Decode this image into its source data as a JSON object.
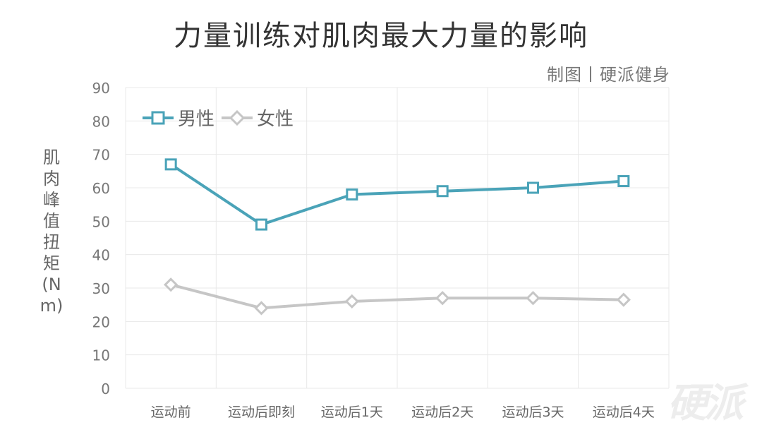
{
  "title": "力量训练对肌肉最大力量的影响",
  "credit": "制图丨硬派健身",
  "watermark": "硬派",
  "colors": {
    "male": "#4aa3b8",
    "female": "#c6c6c6",
    "grid": "#e8e8e8",
    "axis_text": "#777777"
  },
  "chart_data": {
    "type": "line",
    "title": "力量训练对肌肉最大力量的影响",
    "xlabel": "",
    "ylabel": "肌肉峰值扭矩(Nm)",
    "categories": [
      "运动前",
      "运动后即刻",
      "运动后1天",
      "运动后2天",
      "运动后3天",
      "运动后4天"
    ],
    "ylim": [
      0,
      90
    ],
    "yticks": [
      0,
      10,
      20,
      30,
      40,
      50,
      60,
      70,
      80,
      90
    ],
    "grid": true,
    "legend": "top-left",
    "series": [
      {
        "name": "男性",
        "marker": "square",
        "values": [
          67,
          49,
          58,
          59,
          60,
          62
        ]
      },
      {
        "name": "女性",
        "marker": "diamond",
        "values": [
          31,
          24,
          26,
          27,
          27,
          26.5
        ]
      }
    ]
  }
}
